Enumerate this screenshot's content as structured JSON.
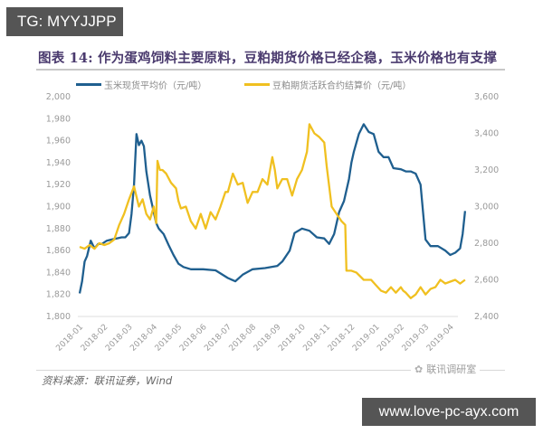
{
  "watermarks": {
    "top_left": "TG: MYYJJPP",
    "bottom_right": "www.love-pc-ayx.com"
  },
  "colors": {
    "corn": "#1f5f8f",
    "soymeal": "#f0c020",
    "title": "#4a3a6e",
    "watermark_bg": "#555555"
  },
  "footer": {
    "source": "资料来源：联讯证券，Wind",
    "brand": "联讯调研室"
  },
  "chart_data": {
    "type": "line",
    "title": "图表 14: 作为蛋鸡饲料主要原料，豆粕期货价格已经企稳，玉米价格也有支撑",
    "xlabel": "",
    "ylabel": "",
    "legend_position": "top",
    "grid": false,
    "categories": [
      "2018-01",
      "2018-02",
      "2018-03",
      "2018-04",
      "2018-05",
      "2018-06",
      "2018-07",
      "2018-08",
      "2018-09",
      "2018-10",
      "2018-11",
      "2018-12",
      "2019-01",
      "2019-02",
      "2019-03",
      "2019-04"
    ],
    "y_left": {
      "ticks": [
        "2,000",
        "1,980",
        "1,960",
        "1,940",
        "1,920",
        "1,900",
        "1,880",
        "1,860",
        "1,840",
        "1,820",
        "1,800"
      ],
      "range": [
        1800,
        2000
      ]
    },
    "y_right": {
      "ticks": [
        "3,600",
        "3,400",
        "3,200",
        "3,000",
        "2,800",
        "2,600",
        "2,400"
      ],
      "range": [
        2400,
        3600
      ]
    },
    "series": [
      {
        "name": "玉米现货平均价（元/吨）",
        "axis": "left",
        "color": "#1f5f8f",
        "x": [
          0,
          0.1,
          0.2,
          0.3,
          0.45,
          0.6,
          0.75,
          0.9,
          1.1,
          1.3,
          1.5,
          1.7,
          1.85,
          2.0,
          2.1,
          2.2,
          2.3,
          2.4,
          2.5,
          2.6,
          2.7,
          2.85,
          3.0,
          3.1,
          3.2,
          3.4,
          3.6,
          3.8,
          4.0,
          4.2,
          4.5,
          5.0,
          5.5,
          6.0,
          6.3,
          6.6,
          7.0,
          7.5,
          8.0,
          8.2,
          8.5,
          8.7,
          9.0,
          9.3,
          9.6,
          9.9,
          10.1,
          10.3,
          10.5,
          10.7,
          10.9,
          11.0,
          11.1,
          11.3,
          11.5,
          11.7,
          11.9,
          12.1,
          12.3,
          12.5,
          12.7,
          13.0,
          13.2,
          13.4,
          13.6,
          13.8,
          14.0,
          14.2,
          14.5,
          14.8,
          15.0,
          15.2,
          15.4,
          15.5,
          15.6
        ],
        "values": [
          1821,
          1832,
          1850,
          1855,
          1869,
          1862,
          1866,
          1866,
          1869,
          1870,
          1871,
          1872,
          1872,
          1876,
          1893,
          1920,
          1966,
          1956,
          1960,
          1955,
          1932,
          1910,
          1895,
          1885,
          1880,
          1875,
          1865,
          1856,
          1848,
          1845,
          1843,
          1843,
          1842,
          1835,
          1832,
          1838,
          1843,
          1844,
          1846,
          1850,
          1860,
          1876,
          1880,
          1878,
          1872,
          1871,
          1866,
          1875,
          1895,
          1905,
          1925,
          1940,
          1950,
          1966,
          1975,
          1968,
          1966,
          1950,
          1945,
          1945,
          1935,
          1934,
          1932,
          1932,
          1930,
          1920,
          1870,
          1864,
          1864,
          1860,
          1856,
          1858,
          1862,
          1875,
          1896
        ]
      },
      {
        "name": "豆粕期货活跃合约结算价（元/吨）",
        "axis": "right",
        "color": "#f0c020",
        "x": [
          0,
          0.2,
          0.4,
          0.6,
          0.8,
          1.0,
          1.2,
          1.4,
          1.6,
          1.8,
          2.0,
          2.2,
          2.4,
          2.55,
          2.7,
          2.85,
          3.0,
          3.1,
          3.15,
          3.25,
          3.35,
          3.5,
          3.7,
          3.9,
          4.0,
          4.1,
          4.3,
          4.5,
          4.7,
          4.9,
          5.1,
          5.3,
          5.5,
          5.7,
          5.9,
          6.0,
          6.2,
          6.4,
          6.6,
          6.8,
          7.0,
          7.2,
          7.4,
          7.6,
          7.8,
          7.9,
          8.0,
          8.2,
          8.4,
          8.6,
          8.8,
          9.0,
          9.2,
          9.3,
          9.5,
          9.7,
          9.9,
          10.0,
          10.2,
          10.4,
          10.6,
          10.75,
          10.8,
          11.0,
          11.2,
          11.5,
          11.8,
          12.0,
          12.2,
          12.4,
          12.6,
          12.8,
          13.0,
          13.1,
          13.2,
          13.4,
          13.6,
          13.8,
          14.0,
          14.2,
          14.4,
          14.6,
          14.8,
          15.0,
          15.2,
          15.4,
          15.6
        ],
        "values": [
          2780,
          2770,
          2790,
          2770,
          2800,
          2790,
          2800,
          2820,
          2900,
          2960,
          3040,
          3110,
          3000,
          3040,
          2960,
          2930,
          3000,
          2910,
          3250,
          3200,
          3200,
          3180,
          3130,
          3100,
          3030,
          2990,
          3000,
          2920,
          2880,
          2960,
          2880,
          2970,
          2930,
          3000,
          3080,
          3080,
          3180,
          3120,
          3130,
          3020,
          3080,
          3080,
          3150,
          3120,
          3270,
          3200,
          3100,
          3150,
          3150,
          3060,
          3150,
          3200,
          3300,
          3450,
          3400,
          3380,
          3350,
          3220,
          3000,
          2960,
          2920,
          2900,
          2650,
          2650,
          2640,
          2600,
          2600,
          2570,
          2540,
          2530,
          2560,
          2530,
          2560,
          2540,
          2530,
          2500,
          2520,
          2560,
          2520,
          2550,
          2560,
          2600,
          2580,
          2590,
          2600,
          2580,
          2600
        ]
      }
    ]
  }
}
